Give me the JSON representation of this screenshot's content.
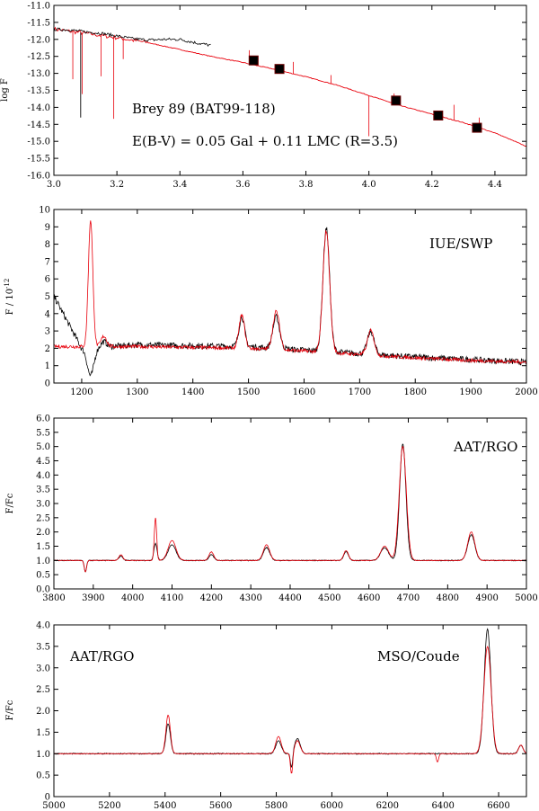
{
  "chart_data": [
    {
      "type": "line",
      "id": "sed",
      "title": "",
      "xlabel": "",
      "ylabel": "log F",
      "xlim": [
        3.0,
        4.5
      ],
      "ylim": [
        -16.0,
        -11.0
      ],
      "xticks": [
        3.0,
        3.2,
        3.4,
        3.6,
        3.8,
        4.0,
        4.2,
        4.4
      ],
      "xtick_labels": [
        "3.0",
        "3.2",
        "3.4",
        "3.6",
        "3.8",
        "4.0",
        "4.2",
        "4.4"
      ],
      "yticks": [
        -11.0,
        -11.5,
        -12.0,
        -12.5,
        -13.0,
        -13.5,
        -14.0,
        -14.5,
        -15.0,
        -15.5,
        -16.0
      ],
      "ytick_labels": [
        "-11.0",
        "-11.5",
        "-12.0",
        "-12.5",
        "-13.0",
        "-13.5",
        "-14.0",
        "-14.5",
        "-15.0",
        "-15.5",
        "-16.0"
      ],
      "annotations": [
        "Brey 89 (BAT99-118)",
        "E(B-V) = 0.05 Gal + 0.11 LMC (R=3.5)"
      ],
      "series": [
        {
          "name": "observed",
          "color": "#000000",
          "x": [
            3.0,
            3.05,
            3.1,
            3.15,
            3.2,
            3.25,
            3.3,
            3.35,
            3.4,
            3.45,
            3.5
          ],
          "y": [
            -11.7,
            -11.72,
            -11.78,
            -11.82,
            -11.9,
            -11.98,
            -12.02,
            -12.0,
            -12.0,
            -12.1,
            -12.18
          ]
        },
        {
          "name": "model",
          "color": "#e8000b",
          "x": [
            3.0,
            3.1,
            3.2,
            3.3,
            3.4,
            3.5,
            3.6,
            3.7,
            3.8,
            3.9,
            4.0,
            4.1,
            4.2,
            4.3,
            4.4,
            4.5
          ],
          "y": [
            -11.7,
            -11.82,
            -11.95,
            -12.1,
            -12.3,
            -12.5,
            -12.68,
            -12.88,
            -13.1,
            -13.35,
            -13.65,
            -13.95,
            -14.2,
            -14.45,
            -14.75,
            -15.15
          ]
        },
        {
          "name": "photometry",
          "color": "#000000",
          "x": [
            3.634,
            3.716,
            4.086,
            4.22,
            4.343
          ],
          "y": [
            -12.62,
            -12.87,
            -13.8,
            -14.24,
            -14.6
          ]
        }
      ]
    },
    {
      "type": "line",
      "id": "iue",
      "xlabel": "",
      "ylabel": "F / 10",
      "ylabel_exp": "-12",
      "xlim": [
        1150,
        2000
      ],
      "ylim": [
        0,
        10
      ],
      "xticks": [
        1200,
        1300,
        1400,
        1500,
        1600,
        1700,
        1800,
        1900,
        2000
      ],
      "xtick_labels": [
        "1200",
        "1300",
        "1400",
        "1500",
        "1600",
        "1700",
        "1800",
        "1900",
        "2000"
      ],
      "yticks": [
        0,
        1,
        2,
        3,
        4,
        5,
        6,
        7,
        8,
        9,
        10
      ],
      "ytick_labels": [
        "0",
        "1",
        "2",
        "3",
        "4",
        "5",
        "6",
        "7",
        "8",
        "9",
        "10"
      ],
      "annotations": [
        "IUE/SWP"
      ],
      "series": [
        {
          "name": "observed",
          "color": "#000000",
          "continuum": [
            [
              1150,
              5.0
            ],
            [
              1200,
              2.0
            ],
            [
              1300,
              2.2
            ],
            [
              1500,
              2.1
            ],
            [
              1600,
              1.9
            ],
            [
              1700,
              1.7
            ],
            [
              1800,
              1.5
            ],
            [
              1900,
              1.35
            ],
            [
              2000,
              1.2
            ]
          ],
          "lines": [
            [
              1216,
              -1.6,
              6
            ],
            [
              1240,
              0.3,
              5
            ],
            [
              1488,
              1.7,
              5
            ],
            [
              1550,
              1.8,
              6
            ],
            [
              1640,
              7.1,
              6
            ],
            [
              1720,
              1.3,
              6
            ]
          ]
        },
        {
          "name": "model",
          "color": "#e8000b",
          "continuum": [
            [
              1150,
              2.1
            ],
            [
              1200,
              2.1
            ],
            [
              1300,
              2.1
            ],
            [
              1500,
              2.0
            ],
            [
              1600,
              1.85
            ],
            [
              1700,
              1.65
            ],
            [
              1800,
              1.45
            ],
            [
              1900,
              1.3
            ],
            [
              2000,
              1.2
            ]
          ],
          "lines": [
            [
              1216,
              7.3,
              4
            ],
            [
              1240,
              0.6,
              5
            ],
            [
              1488,
              1.9,
              5
            ],
            [
              1550,
              2.2,
              6
            ],
            [
              1640,
              7.0,
              6
            ],
            [
              1720,
              1.4,
              6
            ]
          ]
        }
      ]
    },
    {
      "type": "line",
      "id": "aat1",
      "xlabel": "",
      "ylabel": "F/Fc",
      "xlim": [
        3800,
        5000
      ],
      "ylim": [
        0.0,
        6.0
      ],
      "xticks": [
        3800,
        3900,
        4000,
        4100,
        4200,
        4300,
        4400,
        4500,
        4600,
        4700,
        4800,
        4900,
        5000
      ],
      "xtick_labels": [
        "3800",
        "3900",
        "4000",
        "4100",
        "4200",
        "4300",
        "4400",
        "4500",
        "4600",
        "4700",
        "4800",
        "4900",
        "5000"
      ],
      "yticks": [
        0.0,
        0.5,
        1.0,
        1.5,
        2.0,
        2.5,
        3.0,
        3.5,
        4.0,
        4.5,
        5.0,
        5.5,
        6.0
      ],
      "ytick_labels": [
        "0.0",
        "0.5",
        "1.0",
        "1.5",
        "2.0",
        "2.5",
        "3.0",
        "3.5",
        "4.0",
        "4.5",
        "5.0",
        "5.5",
        "6.0"
      ],
      "annotations": [
        "AAT/RGO"
      ],
      "series": [
        {
          "name": "observed",
          "color": "#000000",
          "continuum": 1.0,
          "lines": [
            [
              3880,
              -0.4,
              3
            ],
            [
              3970,
              0.15,
              5
            ],
            [
              4058,
              0.6,
              4
            ],
            [
              4100,
              0.55,
              10
            ],
            [
              4200,
              0.2,
              6
            ],
            [
              4340,
              0.45,
              8
            ],
            [
              4542,
              0.3,
              6
            ],
            [
              4640,
              0.45,
              10
            ],
            [
              4686,
              4.1,
              8
            ],
            [
              4860,
              0.9,
              9
            ]
          ]
        },
        {
          "name": "model",
          "color": "#e8000b",
          "continuum": 1.0,
          "lines": [
            [
              3880,
              -0.4,
              3
            ],
            [
              3970,
              0.2,
              5
            ],
            [
              4058,
              1.5,
              3
            ],
            [
              4100,
              0.7,
              10
            ],
            [
              4200,
              0.3,
              6
            ],
            [
              4340,
              0.55,
              8
            ],
            [
              4542,
              0.35,
              6
            ],
            [
              4640,
              0.5,
              10
            ],
            [
              4686,
              4.0,
              9
            ],
            [
              4860,
              1.0,
              9
            ]
          ]
        }
      ]
    },
    {
      "type": "line",
      "id": "aat2",
      "xlabel": "",
      "ylabel": "F/Fc",
      "xlim": [
        5000,
        6700
      ],
      "ylim": [
        0.0,
        4.0
      ],
      "xticks": [
        5000,
        5200,
        5400,
        5600,
        5800,
        6000,
        6200,
        6400,
        6600
      ],
      "xtick_labels": [
        "5000",
        "5200",
        "5400",
        "5600",
        "5800",
        "6000",
        "6200",
        "6400",
        "6600"
      ],
      "yticks": [
        0.0,
        0.5,
        1.0,
        1.5,
        2.0,
        2.5,
        3.0,
        3.5,
        4.0
      ],
      "ytick_labels": [
        "0",
        "0.5",
        "1.0",
        "1.5",
        "2.0",
        "2.5",
        "3.0",
        "3.5",
        "4.0"
      ],
      "annotations": [
        "AAT/RGO",
        "MSO/Coude"
      ],
      "series": [
        {
          "name": "observed",
          "color": "#000000",
          "continuum": 1.0,
          "lines": [
            [
              5411,
              0.7,
              8
            ],
            [
              5808,
              0.3,
              10
            ],
            [
              5855,
              -0.35,
              4
            ],
            [
              5876,
              0.35,
              10
            ],
            [
              6560,
              2.9,
              12
            ],
            [
              6680,
              0.2,
              8
            ]
          ]
        },
        {
          "name": "model",
          "color": "#e8000b",
          "continuum": 1.0,
          "lines": [
            [
              5411,
              0.9,
              8
            ],
            [
              5808,
              0.4,
              10
            ],
            [
              5855,
              -0.5,
              4
            ],
            [
              5876,
              0.3,
              10
            ],
            [
              6380,
              -0.2,
              4
            ],
            [
              6560,
              2.5,
              13
            ],
            [
              6680,
              0.2,
              8
            ]
          ]
        }
      ]
    }
  ]
}
